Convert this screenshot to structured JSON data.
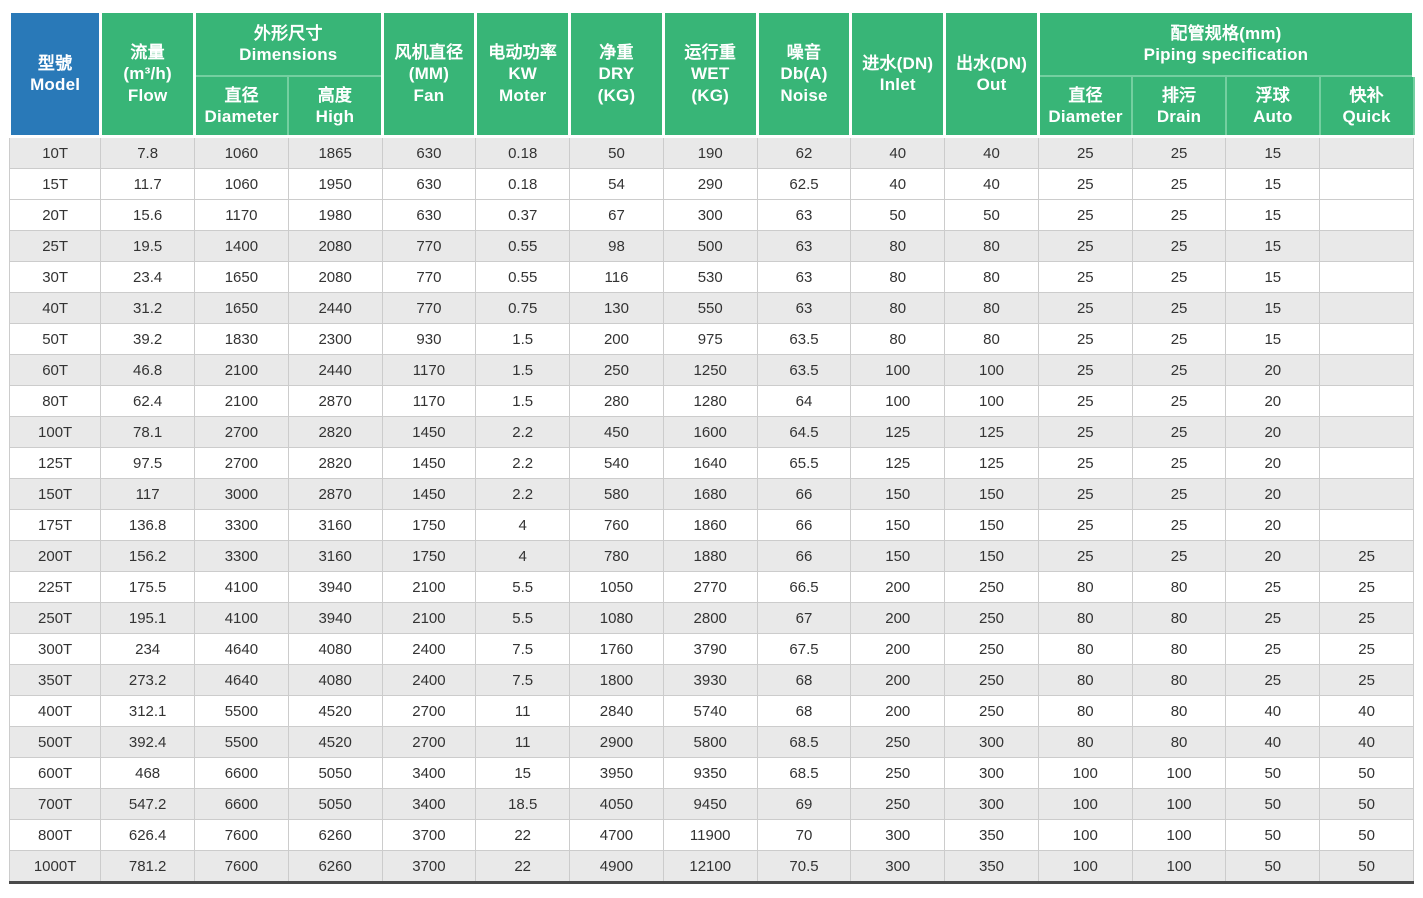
{
  "colors": {
    "green": "#38b577",
    "blue": "#2979b8",
    "divider": "#74cfa0",
    "stripe": "#e9e9e9",
    "grid": "#cccccc",
    "bottom_line": "#4a4a4a",
    "text": "#333333"
  },
  "table": {
    "header": {
      "model": [
        "型號",
        "Model"
      ],
      "flow": [
        "流量",
        "(m³/h)",
        "Flow"
      ],
      "dim_group": [
        "外形尺寸",
        "Dimensions"
      ],
      "dim_diameter": [
        "直径",
        "Diameter"
      ],
      "dim_high": [
        "高度",
        "High"
      ],
      "fan": [
        "风机直径",
        "(MM)",
        "Fan"
      ],
      "motor": [
        "电动功率",
        "KW",
        "Moter"
      ],
      "dry": [
        "净重",
        "DRY",
        "(KG)"
      ],
      "wet": [
        "运行重",
        "WET",
        "(KG)"
      ],
      "noise": [
        "噪音",
        "Db(A)",
        "Noise"
      ],
      "inlet": [
        "进水(DN)",
        "Inlet"
      ],
      "out": [
        "出水(DN)",
        "Out"
      ],
      "piping_group": [
        "配管规格(mm)",
        "Piping specification"
      ],
      "pipe_diameter": [
        "直径",
        "Diameter"
      ],
      "pipe_drain": [
        "排污",
        "Drain"
      ],
      "pipe_auto": [
        "浮球",
        "Auto"
      ],
      "pipe_quick": [
        "快补",
        "Quick"
      ]
    },
    "rows": [
      [
        "10T",
        "7.8",
        "1060",
        "1865",
        "630",
        "0.18",
        "50",
        "190",
        "62",
        "40",
        "40",
        "25",
        "25",
        "15",
        ""
      ],
      [
        "15T",
        "11.7",
        "1060",
        "1950",
        "630",
        "0.18",
        "54",
        "290",
        "62.5",
        "40",
        "40",
        "25",
        "25",
        "15",
        ""
      ],
      [
        "20T",
        "15.6",
        "1170",
        "1980",
        "630",
        "0.37",
        "67",
        "300",
        "63",
        "50",
        "50",
        "25",
        "25",
        "15",
        ""
      ],
      [
        "25T",
        "19.5",
        "1400",
        "2080",
        "770",
        "0.55",
        "98",
        "500",
        "63",
        "80",
        "80",
        "25",
        "25",
        "15",
        ""
      ],
      [
        "30T",
        "23.4",
        "1650",
        "2080",
        "770",
        "0.55",
        "116",
        "530",
        "63",
        "80",
        "80",
        "25",
        "25",
        "15",
        ""
      ],
      [
        "40T",
        "31.2",
        "1650",
        "2440",
        "770",
        "0.75",
        "130",
        "550",
        "63",
        "80",
        "80",
        "25",
        "25",
        "15",
        ""
      ],
      [
        "50T",
        "39.2",
        "1830",
        "2300",
        "930",
        "1.5",
        "200",
        "975",
        "63.5",
        "80",
        "80",
        "25",
        "25",
        "15",
        ""
      ],
      [
        "60T",
        "46.8",
        "2100",
        "2440",
        "1170",
        "1.5",
        "250",
        "1250",
        "63.5",
        "100",
        "100",
        "25",
        "25",
        "20",
        ""
      ],
      [
        "80T",
        "62.4",
        "2100",
        "2870",
        "1170",
        "1.5",
        "280",
        "1280",
        "64",
        "100",
        "100",
        "25",
        "25",
        "20",
        ""
      ],
      [
        "100T",
        "78.1",
        "2700",
        "2820",
        "1450",
        "2.2",
        "450",
        "1600",
        "64.5",
        "125",
        "125",
        "25",
        "25",
        "20",
        ""
      ],
      [
        "125T",
        "97.5",
        "2700",
        "2820",
        "1450",
        "2.2",
        "540",
        "1640",
        "65.5",
        "125",
        "125",
        "25",
        "25",
        "20",
        ""
      ],
      [
        "150T",
        "117",
        "3000",
        "2870",
        "1450",
        "2.2",
        "580",
        "1680",
        "66",
        "150",
        "150",
        "25",
        "25",
        "20",
        ""
      ],
      [
        "175T",
        "136.8",
        "3300",
        "3160",
        "1750",
        "4",
        "760",
        "1860",
        "66",
        "150",
        "150",
        "25",
        "25",
        "20",
        ""
      ],
      [
        "200T",
        "156.2",
        "3300",
        "3160",
        "1750",
        "4",
        "780",
        "1880",
        "66",
        "150",
        "150",
        "25",
        "25",
        "20",
        "25"
      ],
      [
        "225T",
        "175.5",
        "4100",
        "3940",
        "2100",
        "5.5",
        "1050",
        "2770",
        "66.5",
        "200",
        "250",
        "80",
        "80",
        "25",
        "25"
      ],
      [
        "250T",
        "195.1",
        "4100",
        "3940",
        "2100",
        "5.5",
        "1080",
        "2800",
        "67",
        "200",
        "250",
        "80",
        "80",
        "25",
        "25"
      ],
      [
        "300T",
        "234",
        "4640",
        "4080",
        "2400",
        "7.5",
        "1760",
        "3790",
        "67.5",
        "200",
        "250",
        "80",
        "80",
        "25",
        "25"
      ],
      [
        "350T",
        "273.2",
        "4640",
        "4080",
        "2400",
        "7.5",
        "1800",
        "3930",
        "68",
        "200",
        "250",
        "80",
        "80",
        "25",
        "25"
      ],
      [
        "400T",
        "312.1",
        "5500",
        "4520",
        "2700",
        "11",
        "2840",
        "5740",
        "68",
        "200",
        "250",
        "80",
        "80",
        "40",
        "40"
      ],
      [
        "500T",
        "392.4",
        "5500",
        "4520",
        "2700",
        "11",
        "2900",
        "5800",
        "68.5",
        "250",
        "300",
        "80",
        "80",
        "40",
        "40"
      ],
      [
        "600T",
        "468",
        "6600",
        "5050",
        "3400",
        "15",
        "3950",
        "9350",
        "68.5",
        "250",
        "300",
        "100",
        "100",
        "50",
        "50"
      ],
      [
        "700T",
        "547.2",
        "6600",
        "5050",
        "3400",
        "18.5",
        "4050",
        "9450",
        "69",
        "250",
        "300",
        "100",
        "100",
        "50",
        "50"
      ],
      [
        "800T",
        "626.4",
        "7600",
        "6260",
        "3700",
        "22",
        "4700",
        "11900",
        "70",
        "300",
        "350",
        "100",
        "100",
        "50",
        "50"
      ],
      [
        "1000T",
        "781.2",
        "7600",
        "6260",
        "3700",
        "22",
        "4900",
        "12100",
        "70.5",
        "300",
        "350",
        "100",
        "100",
        "50",
        "50"
      ]
    ]
  }
}
